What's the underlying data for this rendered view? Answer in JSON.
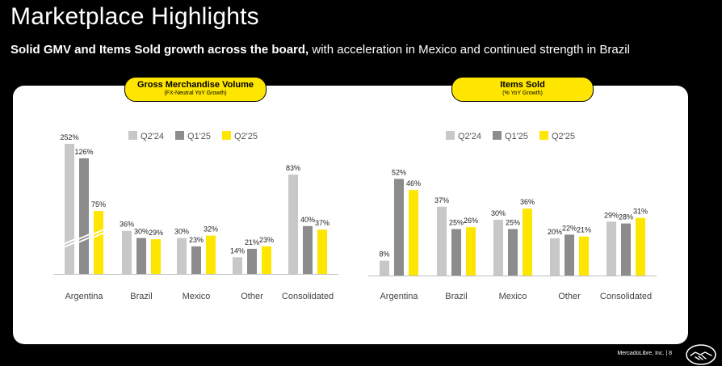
{
  "header": {
    "title": "Marketplace Highlights",
    "subtitle_bold": "Solid GMV and Items Sold growth across the board,",
    "subtitle_rest": " with acceleration in Mexico and continued strength in Brazil"
  },
  "footer": {
    "company": "MercadoLibre, Inc.",
    "separator": "|",
    "page": "8"
  },
  "colors": {
    "q2_24": "#c8c8c8",
    "q1_25": "#8c8c8c",
    "q2_25": "#ffe600",
    "accent": "#ffe600"
  },
  "chart_data": [
    {
      "type": "bar",
      "title": "Gross Merchandise Volume",
      "subtitle": "(FX-Neutral YoY Growth)",
      "categories": [
        "Argentina",
        "Brazil",
        "Mexico",
        "Other",
        "Consolidated"
      ],
      "series": [
        {
          "name": "Q2'24",
          "values": [
            252,
            36,
            30,
            14,
            83
          ],
          "labels": [
            "252%",
            "36%",
            "30%",
            "14%",
            "83%"
          ]
        },
        {
          "name": "Q1'25",
          "values": [
            126,
            30,
            23,
            21,
            40
          ],
          "labels": [
            "126%",
            "30%",
            "23%",
            "21%",
            "40%"
          ]
        },
        {
          "name": "Q2'25",
          "values": [
            75,
            29,
            32,
            23,
            37
          ],
          "labels": [
            "75%",
            "29%",
            "32%",
            "23%",
            "37%"
          ]
        }
      ],
      "axis_break": "Argentina",
      "legend": "top",
      "grid": false
    },
    {
      "type": "bar",
      "title": "Items Sold",
      "subtitle": "(% YoY Growth)",
      "categories": [
        "Argentina",
        "Brazil",
        "Mexico",
        "Other",
        "Consolidated"
      ],
      "series": [
        {
          "name": "Q2'24",
          "values": [
            8,
            37,
            30,
            20,
            29
          ],
          "labels": [
            "8%",
            "37%",
            "30%",
            "20%",
            "29%"
          ]
        },
        {
          "name": "Q1'25",
          "values": [
            52,
            25,
            25,
            22,
            28
          ],
          "labels": [
            "52%",
            "25%",
            "25%",
            "22%",
            "28%"
          ]
        },
        {
          "name": "Q2'25",
          "values": [
            46,
            26,
            36,
            21,
            31
          ],
          "labels": [
            "46%",
            "26%",
            "36%",
            "21%",
            "31%"
          ]
        }
      ],
      "legend": "top",
      "grid": false
    }
  ]
}
